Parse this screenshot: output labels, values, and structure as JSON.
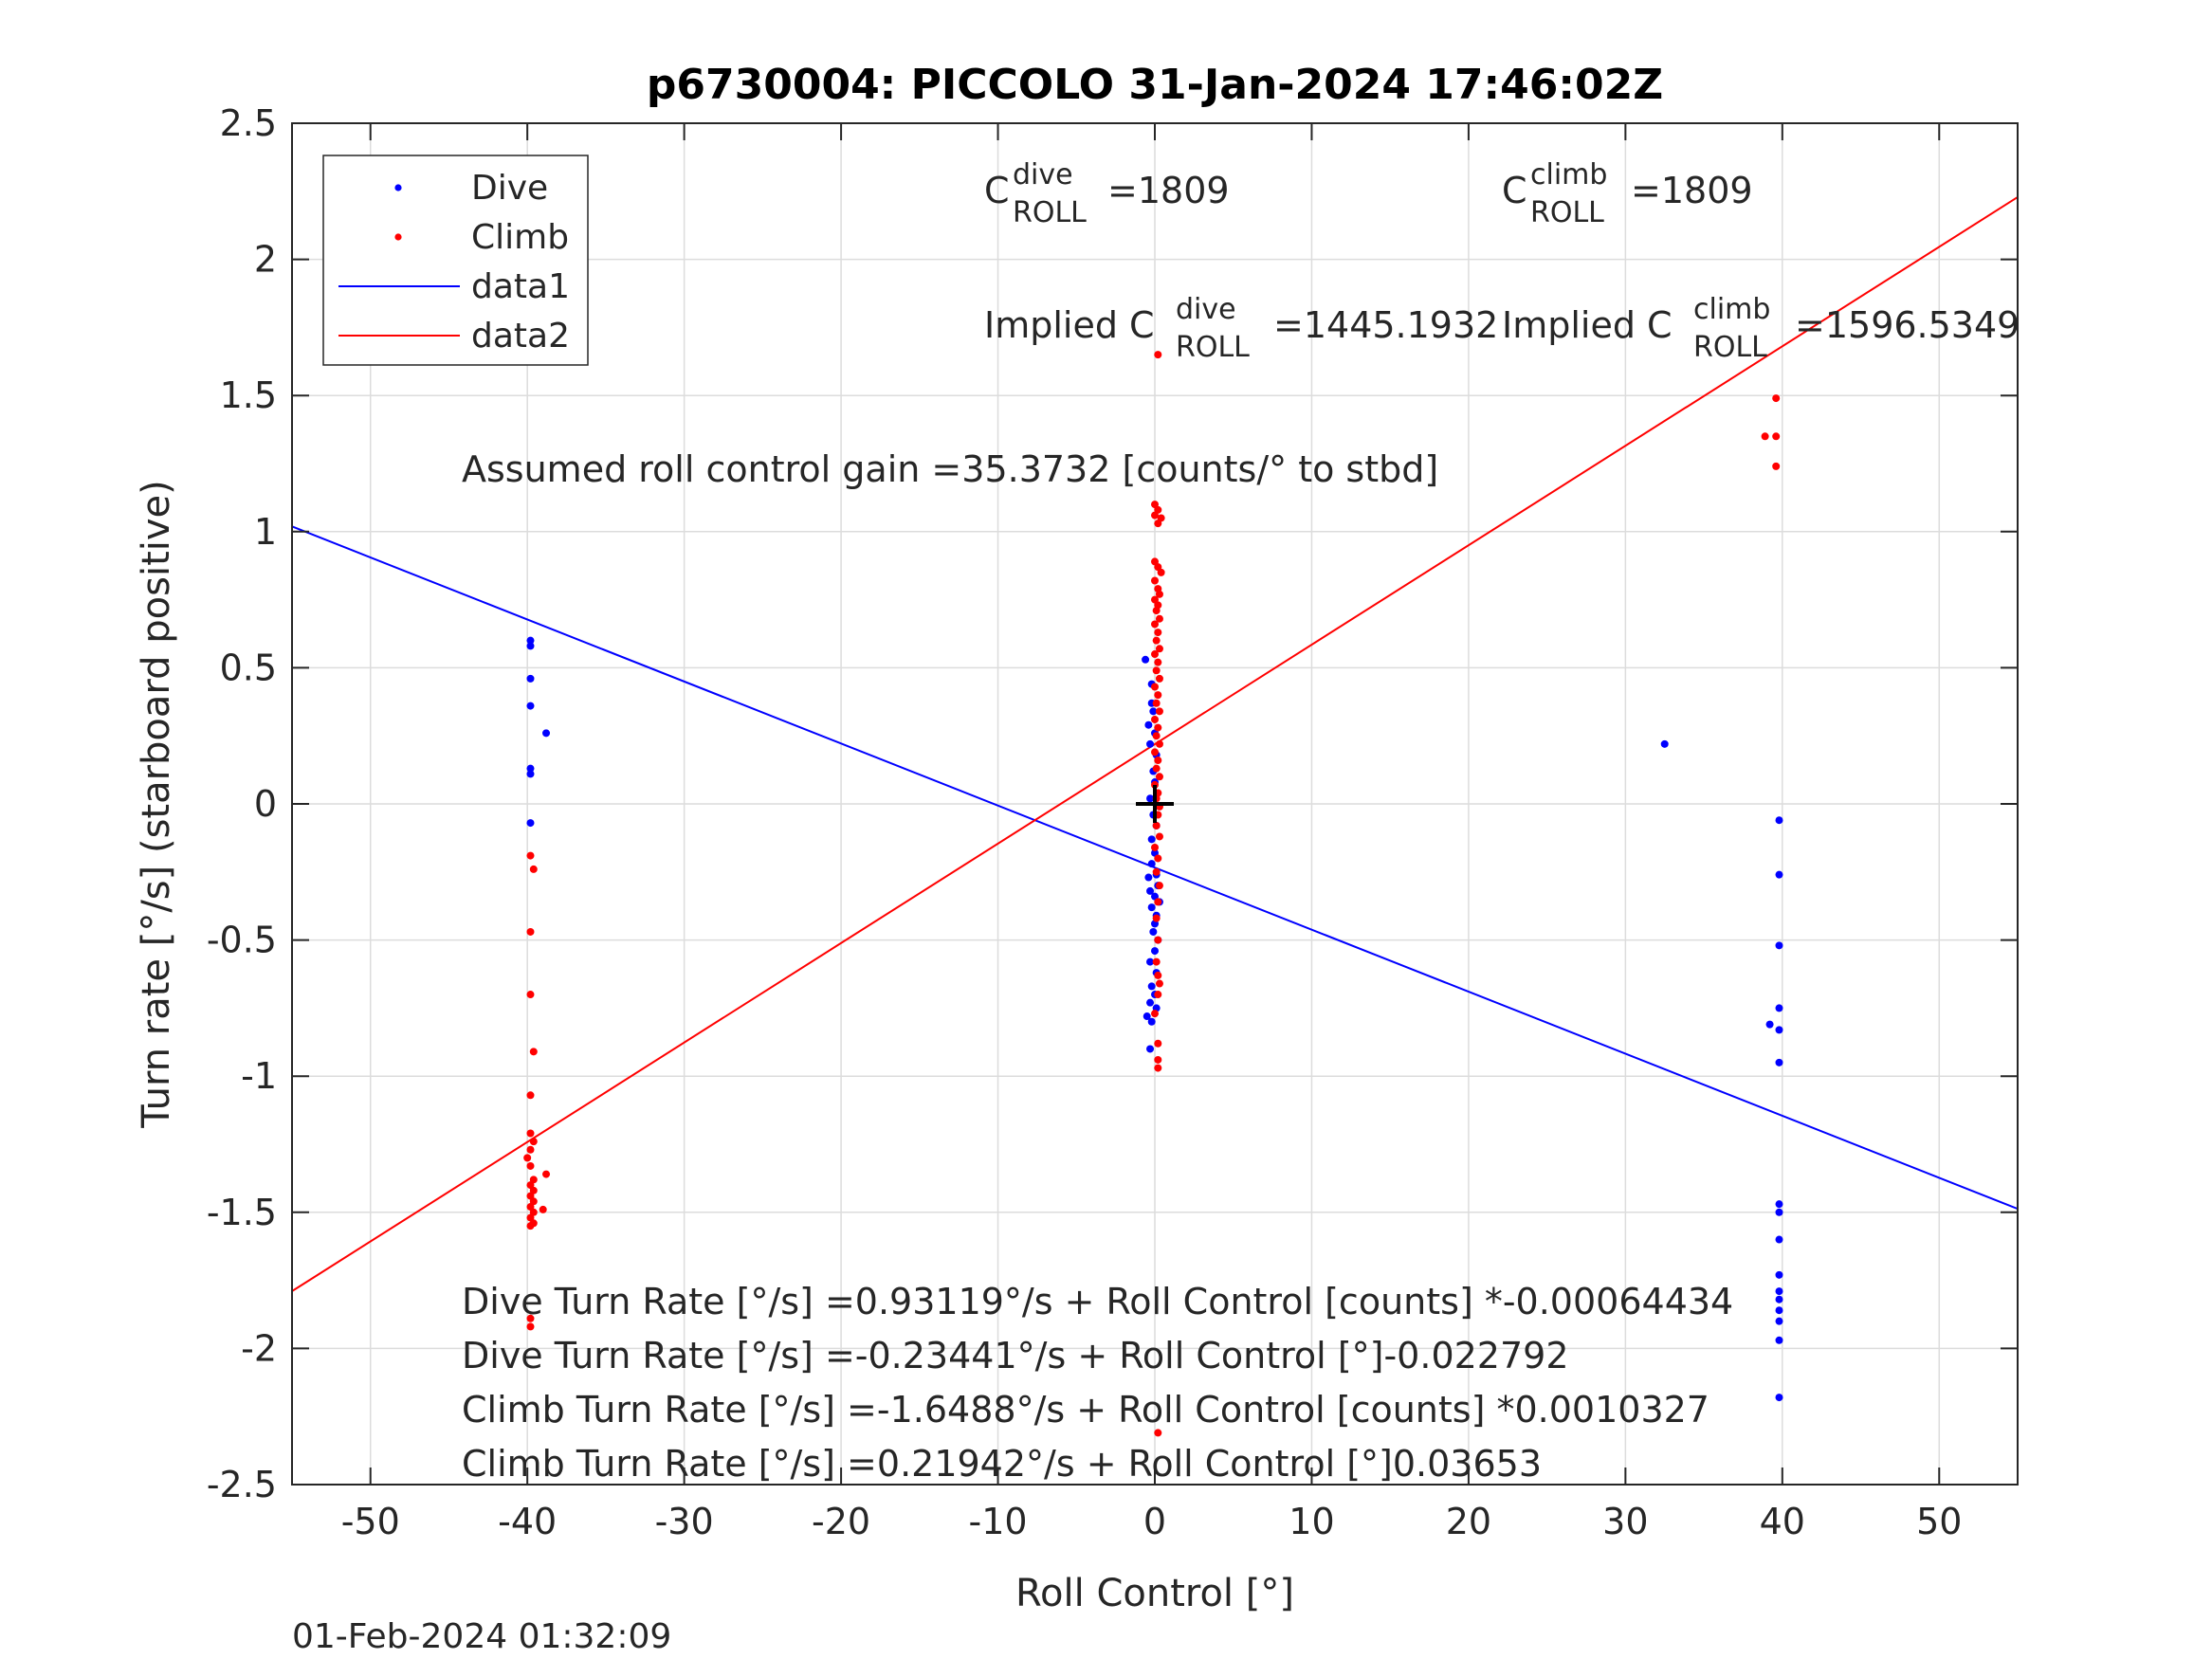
{
  "chart_data": {
    "type": "scatter",
    "title": "p6730004: PICCOLO 31-Jan-2024 17:46:02Z",
    "xlabel": "Roll Control [°]",
    "ylabel": "Turn rate [°/s] (starboard positive)",
    "xlim": [
      -55,
      55
    ],
    "ylim": [
      -2.5,
      2.5
    ],
    "xticks": [
      -50,
      -40,
      -30,
      -20,
      -10,
      0,
      10,
      20,
      30,
      40,
      50
    ],
    "yticks": [
      -2.5,
      -2,
      -1.5,
      -1,
      -0.5,
      0,
      0.5,
      1,
      1.5,
      2,
      2.5
    ],
    "xtick_labels": [
      "-50",
      "-40",
      "-30",
      "-20",
      "-10",
      "0",
      "10",
      "20",
      "30",
      "40",
      "50"
    ],
    "ytick_labels": [
      "-2.5",
      "-2",
      "-1.5",
      "-1",
      "-0.5",
      "0",
      "0.5",
      "1",
      "1.5",
      "2",
      "2.5"
    ],
    "grid": true,
    "legend_position": "top-left",
    "series": [
      {
        "name": "Dive",
        "kind": "points",
        "color": "#0000ff",
        "points": [
          [
            -39.8,
            0.6
          ],
          [
            -39.8,
            0.58
          ],
          [
            -39.8,
            0.46
          ],
          [
            -39.8,
            0.36
          ],
          [
            -38.8,
            0.26
          ],
          [
            -39.8,
            0.13
          ],
          [
            -39.8,
            0.11
          ],
          [
            -39.8,
            -0.07
          ],
          [
            -0.6,
            0.53
          ],
          [
            -0.2,
            0.44
          ],
          [
            -0.2,
            0.37
          ],
          [
            -0.1,
            0.34
          ],
          [
            -0.4,
            0.29
          ],
          [
            0.0,
            0.26
          ],
          [
            -0.3,
            0.22
          ],
          [
            0.1,
            0.18
          ],
          [
            -0.1,
            0.12
          ],
          [
            0.0,
            0.08
          ],
          [
            -0.3,
            0.02
          ],
          [
            -0.1,
            -0.04
          ],
          [
            0.1,
            -0.08
          ],
          [
            -0.2,
            -0.13
          ],
          [
            0.0,
            -0.18
          ],
          [
            -0.2,
            -0.22
          ],
          [
            0.1,
            -0.26
          ],
          [
            -0.4,
            -0.27
          ],
          [
            0.2,
            -0.3
          ],
          [
            -0.3,
            -0.32
          ],
          [
            0.0,
            -0.34
          ],
          [
            0.3,
            -0.36
          ],
          [
            -0.2,
            -0.38
          ],
          [
            0.1,
            -0.41
          ],
          [
            0.0,
            -0.44
          ],
          [
            -0.1,
            -0.47
          ],
          [
            0.2,
            -0.5
          ],
          [
            0.0,
            -0.54
          ],
          [
            -0.3,
            -0.58
          ],
          [
            0.1,
            -0.62
          ],
          [
            -0.2,
            -0.67
          ],
          [
            0.0,
            -0.7
          ],
          [
            -0.3,
            -0.73
          ],
          [
            0.1,
            -0.75
          ],
          [
            -0.5,
            -0.78
          ],
          [
            -0.2,
            -0.8
          ],
          [
            -0.3,
            -0.9
          ],
          [
            32.5,
            0.22
          ],
          [
            39.8,
            -0.06
          ],
          [
            39.8,
            -0.26
          ],
          [
            39.8,
            -0.52
          ],
          [
            39.8,
            -0.75
          ],
          [
            39.2,
            -0.81
          ],
          [
            39.8,
            -0.83
          ],
          [
            39.8,
            -0.95
          ],
          [
            39.8,
            -1.47
          ],
          [
            39.8,
            -1.5
          ],
          [
            39.8,
            -1.6
          ],
          [
            39.8,
            -1.73
          ],
          [
            39.8,
            -1.79
          ],
          [
            39.8,
            -1.82
          ],
          [
            39.8,
            -1.86
          ],
          [
            39.8,
            -1.9
          ],
          [
            39.8,
            -1.97
          ],
          [
            39.8,
            -2.18
          ]
        ]
      },
      {
        "name": "Climb",
        "kind": "points",
        "color": "#ff0000",
        "points": [
          [
            -39.8,
            -0.19
          ],
          [
            -39.6,
            -0.24
          ],
          [
            -39.8,
            -0.47
          ],
          [
            -39.8,
            -0.7
          ],
          [
            -39.6,
            -0.91
          ],
          [
            -39.8,
            -1.07
          ],
          [
            -39.8,
            -1.21
          ],
          [
            -39.6,
            -1.24
          ],
          [
            -39.8,
            -1.27
          ],
          [
            -40.0,
            -1.3
          ],
          [
            -39.8,
            -1.33
          ],
          [
            -38.8,
            -1.36
          ],
          [
            -39.6,
            -1.38
          ],
          [
            -39.8,
            -1.4
          ],
          [
            -39.6,
            -1.42
          ],
          [
            -39.8,
            -1.44
          ],
          [
            -39.6,
            -1.46
          ],
          [
            -39.8,
            -1.48
          ],
          [
            -39.0,
            -1.49
          ],
          [
            -39.6,
            -1.5
          ],
          [
            -39.8,
            -1.52
          ],
          [
            -39.6,
            -1.54
          ],
          [
            -39.8,
            -1.55
          ],
          [
            -39.8,
            -1.89
          ],
          [
            -39.8,
            -1.92
          ],
          [
            0.2,
            1.65
          ],
          [
            0.0,
            1.1
          ],
          [
            0.2,
            1.08
          ],
          [
            0.0,
            1.06
          ],
          [
            0.4,
            1.05
          ],
          [
            0.2,
            1.03
          ],
          [
            0.0,
            0.89
          ],
          [
            0.2,
            0.87
          ],
          [
            0.4,
            0.85
          ],
          [
            0.0,
            0.82
          ],
          [
            0.2,
            0.79
          ],
          [
            0.3,
            0.77
          ],
          [
            0.0,
            0.75
          ],
          [
            0.2,
            0.73
          ],
          [
            0.1,
            0.71
          ],
          [
            0.3,
            0.68
          ],
          [
            0.0,
            0.66
          ],
          [
            0.2,
            0.63
          ],
          [
            0.1,
            0.6
          ],
          [
            0.3,
            0.57
          ],
          [
            0.0,
            0.55
          ],
          [
            0.2,
            0.52
          ],
          [
            0.1,
            0.49
          ],
          [
            0.3,
            0.46
          ],
          [
            0.0,
            0.43
          ],
          [
            0.2,
            0.4
          ],
          [
            0.1,
            0.37
          ],
          [
            0.3,
            0.34
          ],
          [
            0.0,
            0.31
          ],
          [
            0.2,
            0.28
          ],
          [
            0.1,
            0.25
          ],
          [
            0.3,
            0.22
          ],
          [
            0.0,
            0.19
          ],
          [
            0.2,
            0.16
          ],
          [
            0.1,
            0.13
          ],
          [
            0.3,
            0.1
          ],
          [
            0.0,
            0.07
          ],
          [
            0.2,
            0.04
          ],
          [
            0.1,
            0.02
          ],
          [
            0.3,
            -0.01
          ],
          [
            0.2,
            -0.04
          ],
          [
            0.1,
            -0.08
          ],
          [
            0.3,
            -0.12
          ],
          [
            0.0,
            -0.16
          ],
          [
            0.2,
            -0.2
          ],
          [
            0.1,
            -0.25
          ],
          [
            0.3,
            -0.3
          ],
          [
            0.2,
            -0.36
          ],
          [
            0.1,
            -0.42
          ],
          [
            0.2,
            -0.5
          ],
          [
            0.1,
            -0.58
          ],
          [
            0.2,
            -0.63
          ],
          [
            0.3,
            -0.66
          ],
          [
            0.2,
            -0.7
          ],
          [
            0.0,
            -0.77
          ],
          [
            0.2,
            -0.88
          ],
          [
            0.2,
            -0.94
          ],
          [
            0.2,
            -0.97
          ],
          [
            0.2,
            -2.31
          ],
          [
            38.9,
            1.35
          ],
          [
            39.6,
            1.49
          ],
          [
            39.6,
            1.35
          ],
          [
            39.6,
            1.24
          ]
        ]
      },
      {
        "name": "data1",
        "kind": "line",
        "color": "#0000ff",
        "x": [
          -55,
          55
        ],
        "y": [
          1.0192,
          -1.4872
        ]
      },
      {
        "name": "data2",
        "kind": "line",
        "color": "#ff0000",
        "x": [
          -55,
          55
        ],
        "y": [
          -1.7897,
          2.2286
        ]
      }
    ],
    "crosshair": {
      "x": 0,
      "y": 0,
      "color": "#000000"
    },
    "annotations": {
      "c_dive_base": "C",
      "c_dive_sup": "dive",
      "c_dive_sub": "ROLL",
      "c_dive_value": "=1809",
      "c_climb_base": "C",
      "c_climb_sup": "climb",
      "c_climb_sub": "ROLL",
      "c_climb_value": "=1809",
      "implied_dive_base": "Implied C",
      "implied_dive_sup": "dive",
      "implied_dive_sub": "ROLL",
      "implied_dive_value": "=1445.1932",
      "implied_climb_base": "Implied C",
      "implied_climb_sup": "climb",
      "implied_climb_sub": "ROLL",
      "implied_climb_value": "=1596.5349",
      "gain": "Assumed roll control gain =35.3732 [counts/° to stbd]",
      "fit1": "Dive Turn Rate [°/s] =0.93119°/s + Roll Control [counts] *-0.00064434",
      "fit2": "Dive Turn Rate [°/s] =-0.23441°/s + Roll Control [°]-0.022792",
      "fit3": "Climb Turn Rate [°/s] =-1.6488°/s + Roll Control [counts] *0.0010327",
      "fit4": "Climb Turn Rate [°/s] =0.21942°/s + Roll Control [°]0.03653"
    },
    "timestamp": "01-Feb-2024 01:32:09"
  }
}
